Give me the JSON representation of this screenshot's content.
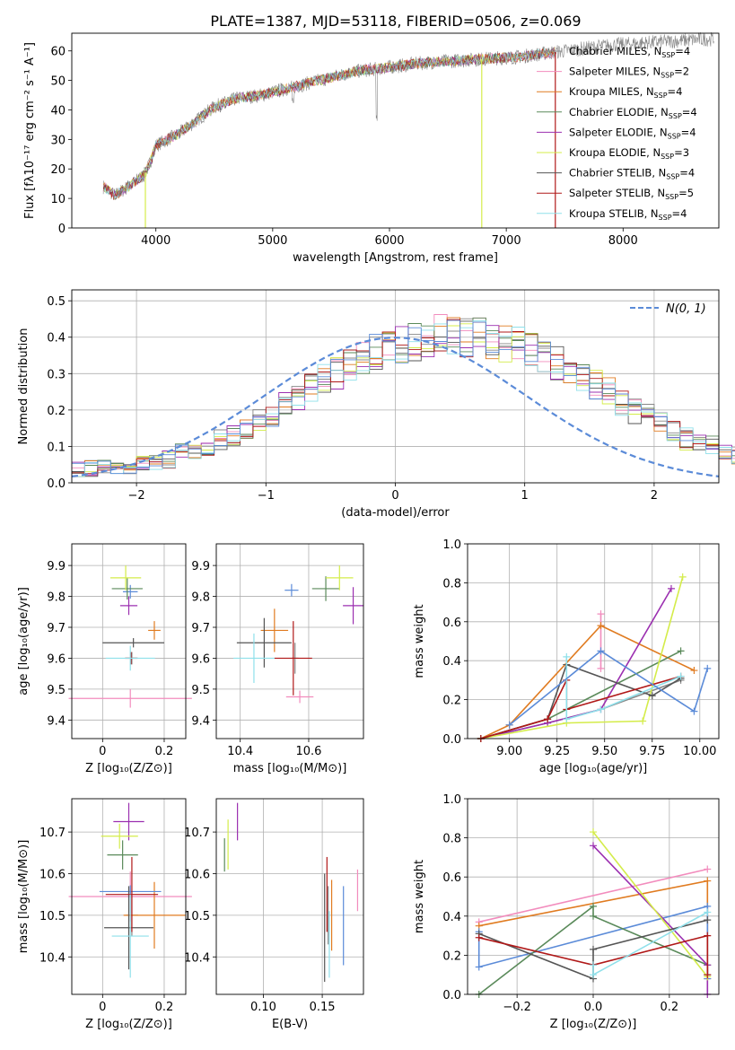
{
  "colors": {
    "chabrier_miles": "#888888",
    "salpeter_miles": "#f28cbd",
    "kroupa_miles": "#e07b20",
    "chabrier_elodie": "#5a8a5a",
    "salpeter_elodie": "#9b2fb0",
    "kroupa_elodie": "#d4ec4a",
    "chabrier_stelib": "#555555",
    "salpeter_stelib": "#b01818",
    "kroupa_stelib": "#8fe0ea",
    "normal_curve": "#5b8bd8"
  },
  "chart_data": [
    {
      "id": "spectrum",
      "type": "line",
      "title": "PLATE=1387, MJD=53118, FIBERID=0506, z=0.069",
      "xlabel": "wavelength [Angstrom, rest frame]",
      "ylabel": "Flux [fλ10⁻¹⁷ erg cm⁻² s⁻¹ A⁻¹]",
      "xlim": [
        3280,
        8820
      ],
      "ylim": [
        0,
        66
      ],
      "xticks": [
        4000,
        5000,
        6000,
        7000,
        8000
      ],
      "yticks": [
        0,
        10,
        20,
        30,
        40,
        50,
        60
      ],
      "grid": false,
      "legend_position": "top-right",
      "legend": [
        {
          "key": "chabrier_miles",
          "label": "Chabrier MILES, N",
          "sub": "SSP",
          "suffix": "=4"
        },
        {
          "key": "salpeter_miles",
          "label": "Salpeter MILES, N",
          "sub": "SSP",
          "suffix": "=2"
        },
        {
          "key": "kroupa_miles",
          "label": "Kroupa MILES, N",
          "sub": "SSP",
          "suffix": "=4"
        },
        {
          "key": "chabrier_elodie",
          "label": "Chabrier ELODIE, N",
          "sub": "SSP",
          "suffix": "=4"
        },
        {
          "key": "salpeter_elodie",
          "label": "Salpeter ELODIE, N",
          "sub": "SSP",
          "suffix": "=4"
        },
        {
          "key": "kroupa_elodie",
          "label": "Kroupa ELODIE, N",
          "sub": "SSP",
          "suffix": "=3"
        },
        {
          "key": "chabrier_stelib",
          "label": "Chabrier STELIB, N",
          "sub": "SSP",
          "suffix": "=4"
        },
        {
          "key": "salpeter_stelib",
          "label": "Salpeter STELIB, N",
          "sub": "SSP",
          "suffix": "=5"
        },
        {
          "key": "kroupa_stelib",
          "label": "Kroupa STELIB, N",
          "sub": "SSP",
          "suffix": "=4"
        }
      ],
      "continuum": {
        "x": [
          3550,
          3650,
          3800,
          3900,
          3950,
          4000,
          4100,
          4200,
          4300,
          4400,
          4500,
          4700,
          4900,
          5100,
          5300,
          5500,
          5700,
          5900,
          6100,
          6300,
          6500,
          6700,
          6900,
          7100,
          7300,
          7500,
          7700,
          7900,
          8100,
          8300,
          8500,
          8700,
          8780
        ],
        "y": [
          14,
          11,
          15,
          18,
          22,
          28,
          30,
          32,
          35,
          38,
          41,
          44,
          45,
          47,
          49,
          51,
          53,
          54,
          55,
          56,
          56.5,
          57,
          57.5,
          58,
          59,
          60,
          61,
          62,
          62.5,
          63,
          63.5,
          64,
          64
        ]
      },
      "model_wavelength_range": [
        3550,
        7420
      ],
      "drops": [
        {
          "series": "kroupa_elodie",
          "x": 3910
        },
        {
          "series": "kroupa_elodie",
          "x": 6790
        },
        {
          "series": "salpeter_stelib",
          "x": 7420
        }
      ]
    },
    {
      "id": "residuals",
      "type": "histogram",
      "xlabel": "(data-model)/error",
      "ylabel": "Normed distribution",
      "xlim": [
        -2.5,
        2.5
      ],
      "ylim": [
        0,
        0.53
      ],
      "xticks": [
        -2,
        -1,
        0,
        1,
        2
      ],
      "xtick_labels": [
        "−2",
        "−1",
        "0",
        "1",
        "2"
      ],
      "yticks": [
        0.0,
        0.1,
        0.2,
        0.3,
        0.4,
        0.5
      ],
      "grid": true,
      "legend_position": "top-right",
      "legend_label": "N(0, 1)",
      "bin_width": 0.1,
      "bin_start": -2.5,
      "base_profile": [
        0.035,
        0.04,
        0.04,
        0.04,
        0.045,
        0.05,
        0.055,
        0.065,
        0.08,
        0.09,
        0.1,
        0.12,
        0.13,
        0.15,
        0.17,
        0.19,
        0.21,
        0.23,
        0.26,
        0.28,
        0.3,
        0.32,
        0.34,
        0.36,
        0.37,
        0.38,
        0.39,
        0.4,
        0.41,
        0.41,
        0.4,
        0.4,
        0.39,
        0.38,
        0.38,
        0.36,
        0.35,
        0.33,
        0.31,
        0.29,
        0.27,
        0.25,
        0.22,
        0.2,
        0.18,
        0.16,
        0.14,
        0.12,
        0.11,
        0.1,
        0.09,
        0.075,
        0.07,
        0.06,
        0.055,
        0.05,
        0.045,
        0.04,
        0.035,
        0.03
      ]
    },
    {
      "id": "age_vs_Z",
      "type": "errorbar",
      "xlabel": "Z [log₁₀(Z/Z⊙)]",
      "ylabel": "age  [log₁₀(age/yr)]",
      "xlim": [
        -0.1,
        0.27
      ],
      "ylim": [
        9.34,
        9.97
      ],
      "xticks": [
        0.0,
        0.2
      ],
      "yticks": [
        9.4,
        9.5,
        9.6,
        9.7,
        9.8,
        9.9
      ],
      "grid": true,
      "points": [
        {
          "key": "chabrier_miles",
          "x": 0.095,
          "xerr": 0.02,
          "y": 9.6,
          "yerr": 0.02
        },
        {
          "key": "salpeter_miles",
          "x": 0.09,
          "xerr": 0.2,
          "y": 9.47,
          "yerr": 0.03
        },
        {
          "key": "kroupa_miles",
          "x": 0.168,
          "xerr": 0.02,
          "y": 9.69,
          "yerr": 0.03
        },
        {
          "key": "normal_curve",
          "x": 0.09,
          "xerr": 0.024,
          "y": 9.815,
          "yerr": 0.022
        },
        {
          "key": "chabrier_elodie",
          "x": 0.08,
          "xerr": 0.05,
          "y": 9.825,
          "yerr": 0.035
        },
        {
          "key": "salpeter_elodie",
          "x": 0.085,
          "xerr": 0.028,
          "y": 9.77,
          "yerr": 0.03
        },
        {
          "key": "kroupa_elodie",
          "x": 0.075,
          "xerr": 0.05,
          "y": 9.86,
          "yerr": 0.04
        },
        {
          "key": "chabrier_stelib",
          "x": 0.1,
          "xerr": 0.1,
          "y": 9.65,
          "yerr": 0.015
        },
        {
          "key": "salpeter_stelib",
          "x": 0.092,
          "xerr": 0.02,
          "y": 9.6,
          "yerr": 0.02
        },
        {
          "key": "kroupa_stelib",
          "x": 0.09,
          "xerr": 0.08,
          "y": 9.6,
          "yerr": 0.04
        }
      ]
    },
    {
      "id": "age_vs_mass",
      "type": "errorbar",
      "xlabel": "mass [log₁₀(M/M⊙)]",
      "ylabel": "",
      "xlim": [
        10.33,
        10.76
      ],
      "ylim": [
        9.34,
        9.97
      ],
      "xticks": [
        10.4,
        10.6
      ],
      "yticks": [
        9.4,
        9.5,
        9.6,
        9.7,
        9.8,
        9.9
      ],
      "grid": true,
      "points": [
        {
          "key": "chabrier_miles",
          "x": 10.56,
          "xerr": 0.01,
          "y": 9.6,
          "yerr": 0.05
        },
        {
          "key": "salpeter_miles",
          "x": 10.574,
          "xerr": 0.04,
          "y": 9.475,
          "yerr": 0.02
        },
        {
          "key": "kroupa_miles",
          "x": 10.5,
          "xerr": 0.04,
          "y": 9.69,
          "yerr": 0.07
        },
        {
          "key": "normal_curve",
          "x": 10.55,
          "xerr": 0.02,
          "y": 9.82,
          "yerr": 0.02
        },
        {
          "key": "chabrier_elodie",
          "x": 10.65,
          "xerr": 0.04,
          "y": 9.825,
          "yerr": 0.04
        },
        {
          "key": "salpeter_elodie",
          "x": 10.73,
          "xerr": 0.03,
          "y": 9.77,
          "yerr": 0.06
        },
        {
          "key": "kroupa_elodie",
          "x": 10.69,
          "xerr": 0.04,
          "y": 9.86,
          "yerr": 0.04
        },
        {
          "key": "chabrier_stelib",
          "x": 10.47,
          "xerr": 0.08,
          "y": 9.65,
          "yerr": 0.08
        },
        {
          "key": "salpeter_stelib",
          "x": 10.555,
          "xerr": 0.055,
          "y": 9.6,
          "yerr": 0.12
        },
        {
          "key": "kroupa_stelib",
          "x": 10.44,
          "xerr": 0.06,
          "y": 9.6,
          "yerr": 0.08
        }
      ]
    },
    {
      "id": "weight_vs_age",
      "type": "line",
      "xlabel": "age  [log₁₀(age/yr)]",
      "ylabel": "mass weight",
      "xlim": [
        8.78,
        10.1
      ],
      "ylim": [
        0,
        1
      ],
      "xticks": [
        9.0,
        9.25,
        9.5,
        9.75,
        10.0
      ],
      "xtick_labels": [
        "9.00",
        "9.25",
        "9.50",
        "9.75",
        "10.00"
      ],
      "yticks": [
        0.0,
        0.2,
        0.4,
        0.6,
        0.8,
        1.0
      ],
      "grid": true,
      "series": [
        {
          "key": "chabrier_miles",
          "x": [
            8.85,
            9.2,
            9.48,
            9.9
          ],
          "y": [
            0.0,
            0.08,
            0.15,
            0.3
          ]
        },
        {
          "key": "salpeter_miles",
          "x": [
            9.48,
            9.48
          ],
          "y": [
            0.36,
            0.64
          ]
        },
        {
          "key": "kroupa_miles",
          "x": [
            8.85,
            9.0,
            9.48,
            9.97
          ],
          "y": [
            0.0,
            0.07,
            0.58,
            0.35
          ]
        },
        {
          "key": "chabrier_elodie",
          "x": [
            8.85,
            9.2,
            9.9
          ],
          "y": [
            0.0,
            0.1,
            0.45
          ]
        },
        {
          "key": "salpeter_elodie",
          "x": [
            8.85,
            9.2,
            9.48,
            9.85
          ],
          "y": [
            0.0,
            0.08,
            0.15,
            0.77
          ]
        },
        {
          "key": "kroupa_elodie",
          "x": [
            8.85,
            9.3,
            9.7,
            9.91
          ],
          "y": [
            0.0,
            0.08,
            0.09,
            0.83
          ]
        },
        {
          "key": "chabrier_stelib",
          "x": [
            8.85,
            9.2,
            9.3,
            9.75,
            9.9
          ],
          "y": [
            0.0,
            0.1,
            0.38,
            0.22,
            0.31
          ]
        },
        {
          "key": "salpeter_stelib",
          "x": [
            8.85,
            9.2,
            9.3,
            9.3,
            9.9
          ],
          "y": [
            0.0,
            0.1,
            0.3,
            0.15,
            0.32
          ]
        },
        {
          "key": "kroupa_stelib",
          "x": [
            9.3,
            9.3,
            9.48,
            9.9
          ],
          "y": [
            0.42,
            0.1,
            0.15,
            0.32
          ]
        },
        {
          "key": "normal_curve",
          "x": [
            9.0,
            9.48,
            9.97,
            10.04
          ],
          "y": [
            0.07,
            0.45,
            0.14,
            0.36
          ]
        }
      ]
    },
    {
      "id": "mass_vs_Z",
      "type": "errorbar",
      "xlabel": "Z [log₁₀(Z/Z⊙)]",
      "ylabel": "mass [log₁₀(M/M⊙)]",
      "xlim": [
        -0.1,
        0.27
      ],
      "ylim": [
        10.31,
        10.78
      ],
      "xticks": [
        0.0,
        0.2
      ],
      "yticks": [
        10.4,
        10.5,
        10.6,
        10.7
      ],
      "grid": true,
      "points": [
        {
          "key": "chabrier_miles",
          "x": 0.095,
          "xerr": 0.02,
          "y": 10.5,
          "yerr": 0.05
        },
        {
          "key": "salpeter_miles",
          "x": 0.09,
          "xerr": 0.2,
          "y": 10.545,
          "yerr": 0.06
        },
        {
          "key": "kroupa_miles",
          "x": 0.168,
          "xerr": 0.1,
          "y": 10.5,
          "yerr": 0.08
        },
        {
          "key": "normal_curve",
          "x": 0.09,
          "xerr": 0.1,
          "y": 10.557,
          "yerr": 0.015
        },
        {
          "key": "chabrier_elodie",
          "x": 0.065,
          "xerr": 0.05,
          "y": 10.645,
          "yerr": 0.035
        },
        {
          "key": "salpeter_elodie",
          "x": 0.085,
          "xerr": 0.05,
          "y": 10.725,
          "yerr": 0.045
        },
        {
          "key": "kroupa_elodie",
          "x": 0.055,
          "xerr": 0.06,
          "y": 10.69,
          "yerr": 0.03
        },
        {
          "key": "chabrier_stelib",
          "x": 0.085,
          "xerr": 0.08,
          "y": 10.47,
          "yerr": 0.1
        },
        {
          "key": "salpeter_stelib",
          "x": 0.095,
          "xerr": 0.085,
          "y": 10.55,
          "yerr": 0.09
        },
        {
          "key": "kroupa_stelib",
          "x": 0.09,
          "xerr": 0.06,
          "y": 10.45,
          "yerr": 0.1
        }
      ]
    },
    {
      "id": "mass_vs_ebv",
      "type": "errorbar",
      "xlabel": "E(B-V)",
      "ylabel": "",
      "xlim": [
        0.06,
        0.185
      ],
      "ylim": [
        10.31,
        10.78
      ],
      "xticks": [
        0.1,
        0.15
      ],
      "xtick_labels": [
        "0.10",
        "0.15"
      ],
      "yticks": [
        10.4,
        10.5,
        10.6,
        10.7
      ],
      "grid": true,
      "points": [
        {
          "key": "chabrier_miles",
          "x": 0.155,
          "xerr": 0,
          "y": 10.5,
          "yerr": 0.07
        },
        {
          "key": "salpeter_miles",
          "x": 0.18,
          "xerr": 0,
          "y": 10.56,
          "yerr": 0.05
        },
        {
          "key": "kroupa_miles",
          "x": 0.158,
          "xerr": 0,
          "y": 10.5,
          "yerr": 0.085
        },
        {
          "key": "normal_curve",
          "x": 0.168,
          "xerr": 0,
          "y": 10.475,
          "yerr": 0.095
        },
        {
          "key": "chabrier_elodie",
          "x": 0.067,
          "xerr": 0,
          "y": 10.645,
          "yerr": 0.04
        },
        {
          "key": "salpeter_elodie",
          "x": 0.078,
          "xerr": 0,
          "y": 10.725,
          "yerr": 0.045
        },
        {
          "key": "kroupa_elodie",
          "x": 0.07,
          "xerr": 0,
          "y": 10.67,
          "yerr": 0.06
        },
        {
          "key": "chabrier_stelib",
          "x": 0.152,
          "xerr": 0,
          "y": 10.47,
          "yerr": 0.13
        },
        {
          "key": "salpeter_stelib",
          "x": 0.154,
          "xerr": 0,
          "y": 10.55,
          "yerr": 0.09
        },
        {
          "key": "kroupa_stelib",
          "x": 0.156,
          "xerr": 0,
          "y": 10.43,
          "yerr": 0.08
        }
      ]
    },
    {
      "id": "weight_vs_Z",
      "type": "line",
      "xlabel": "Z [log₁₀(Z/Z⊙)]",
      "ylabel": "mass weight",
      "xlim": [
        -0.33,
        0.33
      ],
      "ylim": [
        0,
        1
      ],
      "xticks": [
        -0.2,
        0.0,
        0.2
      ],
      "xtick_labels": [
        "−0.2",
        "0.0",
        "0.2"
      ],
      "yticks": [
        0.0,
        0.2,
        0.4,
        0.6,
        0.8,
        1.0
      ],
      "grid": true,
      "series": [
        {
          "key": "salpeter_miles",
          "x": [
            -0.3,
            0.3
          ],
          "y": [
            0.37,
            0.64
          ]
        },
        {
          "key": "kroupa_miles",
          "x": [
            -0.3,
            0.3,
            0.3
          ],
          "y": [
            0.35,
            0.58,
            0.08
          ]
        },
        {
          "key": "normal_curve",
          "x": [
            -0.3,
            -0.3,
            0.3,
            0.3
          ],
          "y": [
            0.32,
            0.14,
            0.45,
            0.08
          ]
        },
        {
          "key": "chabrier_elodie",
          "x": [
            -0.3,
            0.0,
            0.0,
            0.3,
            0.3
          ],
          "y": [
            0.0,
            0.45,
            0.4,
            0.15,
            0.1
          ]
        },
        {
          "key": "salpeter_elodie",
          "x": [
            0.0,
            0.3,
            0.3
          ],
          "y": [
            0.76,
            0.15,
            0.0
          ]
        },
        {
          "key": "kroupa_elodie",
          "x": [
            0.0,
            0.3
          ],
          "y": [
            0.83,
            0.09
          ]
        },
        {
          "key": "chabrier_stelib",
          "x": [
            -0.3,
            0.0,
            0.0,
            0.3
          ],
          "y": [
            0.31,
            0.08,
            0.23,
            0.38
          ]
        },
        {
          "key": "salpeter_stelib",
          "x": [
            -0.3,
            0.0,
            0.3,
            0.3
          ],
          "y": [
            0.29,
            0.15,
            0.3,
            0.1
          ]
        },
        {
          "key": "kroupa_stelib",
          "x": [
            0.0,
            0.0,
            0.3
          ],
          "y": [
            0.15,
            0.1,
            0.42
          ]
        }
      ]
    }
  ]
}
